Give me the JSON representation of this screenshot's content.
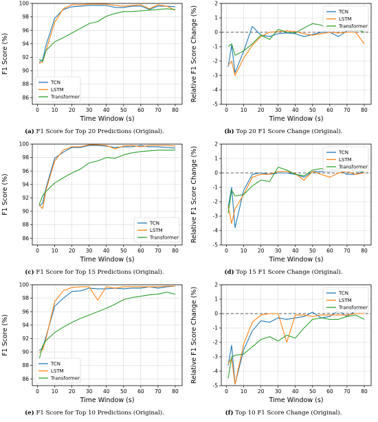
{
  "chart_data": [
    {
      "id": "a",
      "type": "line",
      "caption_prefix": "(a)",
      "caption": "F1 Score for Top 20 Predictions (Original).",
      "xlabel": "Time Window (s)",
      "ylabel": "F1 Score (%)",
      "xlim": [
        -3,
        84
      ],
      "ylim": [
        85,
        100
      ],
      "xticks": [
        0,
        10,
        20,
        30,
        40,
        50,
        60,
        70,
        80
      ],
      "yticks": [
        86,
        88,
        90,
        92,
        94,
        96,
        98,
        100
      ],
      "grid": true,
      "legend_position": "lower-left",
      "zero_line": false,
      "series": [
        {
          "name": "TCN",
          "color": "#1f77b4",
          "x": [
            1,
            3,
            5,
            10,
            15,
            20,
            25,
            30,
            35,
            40,
            45,
            50,
            55,
            60,
            65,
            70,
            75,
            80
          ],
          "y": [
            91.3,
            91.6,
            93.8,
            97.8,
            99.1,
            99.5,
            99.6,
            99.7,
            99.7,
            99.7,
            99.4,
            99.4,
            99.6,
            99.6,
            99.1,
            99.6,
            99.6,
            99.5
          ]
        },
        {
          "name": "LSTM",
          "color": "#ff7f0e",
          "x": [
            1,
            3,
            5,
            10,
            15,
            20,
            25,
            30,
            35,
            40,
            45,
            50,
            55,
            60,
            65,
            70,
            75,
            80
          ],
          "y": [
            91.1,
            91.3,
            93.0,
            97.2,
            99.2,
            99.8,
            99.8,
            99.9,
            99.9,
            99.9,
            99.7,
            99.6,
            99.7,
            99.8,
            99.2,
            99.8,
            99.6,
            99.0
          ]
        },
        {
          "name": "Transformer",
          "color": "#2ca02c",
          "x": [
            1,
            3,
            5,
            10,
            15,
            20,
            25,
            30,
            35,
            40,
            45,
            50,
            55,
            60,
            65,
            70,
            75,
            80
          ],
          "y": [
            91.7,
            91.4,
            93.0,
            94.3,
            94.9,
            95.6,
            96.3,
            97.0,
            97.3,
            98.1,
            98.5,
            98.8,
            98.8,
            98.9,
            99.0,
            99.1,
            99.2,
            99.1
          ]
        }
      ]
    },
    {
      "id": "b",
      "type": "line",
      "caption_prefix": "(b)",
      "caption": "Top 20 F1 Score Change (Original).",
      "xlabel": "Time Window (s)",
      "ylabel": "Relative F1 Score Change (%)",
      "xlim": [
        -3,
        84
      ],
      "ylim": [
        -5,
        2
      ],
      "xticks": [
        0,
        10,
        20,
        30,
        40,
        50,
        60,
        70,
        80
      ],
      "yticks": [
        -5,
        -4,
        -3,
        -2,
        -1,
        0,
        1,
        2
      ],
      "grid": true,
      "legend_position": "upper-right",
      "zero_line": true,
      "series": [
        {
          "name": "TCN",
          "color": "#1f77b4",
          "x": [
            1,
            3,
            5,
            10,
            15,
            20,
            25,
            30,
            35,
            40,
            45,
            50,
            55,
            60,
            65,
            70,
            75,
            80
          ],
          "y": [
            -2.4,
            -0.9,
            -2.8,
            -1.3,
            0.4,
            -0.2,
            -0.3,
            -0.1,
            -0.05,
            -0.1,
            -0.3,
            -0.15,
            0,
            0,
            -0.3,
            0.1,
            0.1,
            0.2
          ]
        },
        {
          "name": "LSTM",
          "color": "#ff7f0e",
          "x": [
            1,
            3,
            5,
            10,
            15,
            20,
            25,
            30,
            35,
            40,
            45,
            50,
            55,
            60,
            65,
            70,
            75,
            80
          ],
          "y": [
            -2.3,
            -2.0,
            -3.0,
            -1.8,
            -0.9,
            -0.3,
            0,
            0.05,
            0.1,
            0.05,
            -0.1,
            -0.2,
            -0.1,
            0,
            -0.05,
            0,
            0,
            -0.8
          ]
        },
        {
          "name": "Transformer",
          "color": "#2ca02c",
          "x": [
            1,
            3,
            5,
            10,
            15,
            20,
            25,
            30,
            35,
            40,
            45,
            50,
            55,
            60,
            65,
            70,
            75,
            80
          ],
          "y": [
            -1.0,
            -0.8,
            -1.6,
            -1.3,
            -0.8,
            -0.2,
            -0.5,
            0.2,
            0,
            -0.05,
            0.3,
            0.6,
            0.5,
            0.2,
            0.3,
            0.4,
            0.2,
            0
          ]
        }
      ]
    },
    {
      "id": "c",
      "type": "line",
      "caption_prefix": "(c)",
      "caption": "F1 Score for Top 15 Predictions (Original).",
      "xlabel": "Time Window (s)",
      "ylabel": "F1 Score (%)",
      "xlim": [
        -3,
        84
      ],
      "ylim": [
        85,
        100
      ],
      "xticks": [
        0,
        10,
        20,
        30,
        40,
        50,
        60,
        70,
        80
      ],
      "yticks": [
        86,
        88,
        90,
        92,
        94,
        96,
        98,
        100
      ],
      "grid": true,
      "legend_position": "lower-right",
      "zero_line": false,
      "series": [
        {
          "name": "TCN",
          "color": "#1f77b4",
          "x": [
            1,
            3,
            5,
            10,
            15,
            20,
            25,
            30,
            35,
            40,
            45,
            50,
            55,
            60,
            65,
            70,
            75,
            80
          ],
          "y": [
            90.8,
            91.2,
            93.5,
            97.9,
            98.8,
            99.5,
            99.5,
            99.8,
            99.8,
            99.7,
            99.5,
            99.6,
            99.6,
            99.8,
            99.6,
            99.6,
            99.5,
            99.4
          ]
        },
        {
          "name": "LSTM",
          "color": "#ff7f0e",
          "x": [
            1,
            3,
            5,
            10,
            15,
            20,
            25,
            30,
            35,
            40,
            45,
            50,
            55,
            60,
            65,
            70,
            75,
            80
          ],
          "y": [
            91.0,
            90.4,
            93.2,
            97.5,
            99.1,
            99.6,
            99.6,
            99.9,
            99.9,
            99.8,
            99.3,
            99.7,
            99.8,
            99.6,
            99.8,
            99.8,
            99.8,
            99.7
          ]
        },
        {
          "name": "Transformer",
          "color": "#2ca02c",
          "x": [
            1,
            3,
            5,
            10,
            15,
            20,
            25,
            30,
            35,
            40,
            45,
            50,
            55,
            60,
            65,
            70,
            75,
            80
          ],
          "y": [
            91.0,
            92.3,
            93.0,
            94.2,
            95.0,
            95.7,
            96.3,
            97.2,
            97.5,
            98.0,
            97.9,
            98.4,
            98.7,
            98.9,
            99.0,
            99.1,
            99.1,
            99.1
          ]
        }
      ]
    },
    {
      "id": "d",
      "type": "line",
      "caption_prefix": "(d)",
      "caption": "Top 15 F1 Score Change (Original).",
      "xlabel": "Time Window (s)",
      "ylabel": "Relative F1 Score Change (%)",
      "xlim": [
        -3,
        84
      ],
      "ylim": [
        -5,
        2
      ],
      "xticks": [
        0,
        10,
        20,
        30,
        40,
        50,
        60,
        70,
        80
      ],
      "yticks": [
        -5,
        -4,
        -3,
        -2,
        -1,
        0,
        1,
        2
      ],
      "grid": true,
      "legend_position": "upper-right",
      "zero_line": true,
      "series": [
        {
          "name": "TCN",
          "color": "#1f77b4",
          "x": [
            1,
            3,
            5,
            10,
            15,
            20,
            25,
            30,
            35,
            40,
            45,
            50,
            55,
            60,
            65,
            70,
            75,
            80
          ],
          "y": [
            -2.4,
            -1.0,
            -3.8,
            -1.2,
            -0.1,
            0,
            -0.1,
            0,
            0,
            -0.1,
            -0.3,
            0.1,
            0.1,
            0.1,
            0.2,
            -0.1,
            -0.1,
            0.1
          ]
        },
        {
          "name": "LSTM",
          "color": "#ff7f0e",
          "x": [
            1,
            3,
            5,
            10,
            15,
            20,
            25,
            30,
            35,
            40,
            45,
            50,
            55,
            60,
            65,
            70,
            75,
            80
          ],
          "y": [
            -2.3,
            -3.5,
            -2.5,
            -1.5,
            -0.3,
            -0.1,
            -0.1,
            0.1,
            0.1,
            -0.05,
            -0.5,
            0.1,
            -0.1,
            -0.3,
            0,
            0.1,
            -0.1,
            0
          ]
        },
        {
          "name": "Transformer",
          "color": "#2ca02c",
          "x": [
            1,
            3,
            5,
            10,
            15,
            20,
            25,
            30,
            35,
            40,
            45,
            50,
            55,
            60,
            65,
            70,
            75,
            80
          ],
          "y": [
            -2.8,
            -1.2,
            -1.6,
            -1.5,
            -0.9,
            -0.5,
            -0.6,
            0.4,
            0.2,
            -0.1,
            -0.2,
            0.2,
            0.3,
            0.2,
            0.3,
            0.4,
            0.1,
            0.1
          ]
        }
      ]
    },
    {
      "id": "e",
      "type": "line",
      "caption_prefix": "(e)",
      "caption": "F1 Score for Top 10 Predictions (Original).",
      "xlabel": "Time Window (s)",
      "ylabel": "F1 Score (%)",
      "xlim": [
        -3,
        84
      ],
      "ylim": [
        85,
        100
      ],
      "xticks": [
        0,
        10,
        20,
        30,
        40,
        50,
        60,
        70,
        80
      ],
      "yticks": [
        86,
        88,
        90,
        92,
        94,
        96,
        98,
        100
      ],
      "grid": true,
      "legend_position": "lower-left",
      "zero_line": false,
      "series": [
        {
          "name": "TCN",
          "color": "#1f77b4",
          "x": [
            1,
            3,
            5,
            10,
            15,
            20,
            25,
            30,
            35,
            40,
            45,
            50,
            55,
            60,
            65,
            70,
            75,
            80
          ],
          "y": [
            90.2,
            90.6,
            92.3,
            96.8,
            98.0,
            99.0,
            99.1,
            99.5,
            99.4,
            99.4,
            99.5,
            99.4,
            99.5,
            99.5,
            99.7,
            99.5,
            99.7,
            99.8
          ]
        },
        {
          "name": "LSTM",
          "color": "#ff7f0e",
          "x": [
            1,
            3,
            5,
            10,
            15,
            20,
            25,
            30,
            35,
            40,
            45,
            50,
            55,
            60,
            65,
            70,
            75,
            80
          ],
          "y": [
            89.9,
            90.3,
            92.0,
            97.5,
            99.1,
            99.6,
            99.7,
            99.7,
            97.7,
            99.7,
            99.5,
            99.7,
            99.7,
            99.7,
            99.7,
            99.7,
            99.8,
            99.8
          ]
        },
        {
          "name": "Transformer",
          "color": "#2ca02c",
          "x": [
            1,
            3,
            5,
            10,
            15,
            20,
            25,
            30,
            35,
            40,
            45,
            50,
            55,
            60,
            65,
            70,
            75,
            80
          ],
          "y": [
            88.9,
            90.9,
            91.7,
            92.9,
            93.7,
            94.4,
            95.0,
            95.5,
            96.0,
            96.5,
            97.1,
            97.8,
            98.1,
            98.3,
            98.5,
            98.6,
            98.9,
            98.6
          ]
        }
      ]
    },
    {
      "id": "f",
      "type": "line",
      "caption_prefix": "(f)",
      "caption": "Top 10 F1 Score Change (Original).",
      "xlabel": "Time Window (s)",
      "ylabel": "Relative F1 Score Change (%)",
      "xlim": [
        -3,
        84
      ],
      "ylim": [
        -5,
        2
      ],
      "xticks": [
        0,
        10,
        20,
        30,
        40,
        50,
        60,
        70,
        80
      ],
      "yticks": [
        -5,
        -4,
        -3,
        -2,
        -1,
        0,
        1,
        2
      ],
      "grid": true,
      "legend_position": "upper-right",
      "zero_line": true,
      "series": [
        {
          "name": "TCN",
          "color": "#1f77b4",
          "x": [
            1,
            3,
            5,
            10,
            15,
            20,
            25,
            30,
            35,
            40,
            45,
            50,
            55,
            60,
            65,
            70,
            75,
            80
          ],
          "y": [
            -3.6,
            -2.2,
            -4.9,
            -2.5,
            -1.2,
            -0.5,
            -0.6,
            -0.3,
            -0.4,
            -0.3,
            -0.2,
            0.1,
            -0.3,
            -0.2,
            0.2,
            -0.2,
            0.2,
            0.4
          ]
        },
        {
          "name": "LSTM",
          "color": "#ff7f0e",
          "x": [
            1,
            3,
            5,
            10,
            15,
            20,
            25,
            30,
            35,
            40,
            45,
            50,
            55,
            60,
            65,
            70,
            75,
            80
          ],
          "y": [
            -3.5,
            -3.1,
            -4.9,
            -2.1,
            -0.6,
            -0.1,
            0,
            0,
            -2.0,
            -0.1,
            -0.1,
            -0.2,
            -0.1,
            -0.1,
            -0.1,
            -0.1,
            0,
            0
          ]
        },
        {
          "name": "Transformer",
          "color": "#2ca02c",
          "x": [
            1,
            3,
            5,
            10,
            15,
            20,
            25,
            30,
            35,
            40,
            45,
            50,
            55,
            60,
            65,
            70,
            75,
            80
          ],
          "y": [
            -4.5,
            -3.0,
            -2.9,
            -2.8,
            -2.3,
            -1.8,
            -1.6,
            -1.9,
            -1.5,
            -1.7,
            -1.0,
            -0.4,
            -0.3,
            -0.4,
            -0.4,
            -0.2,
            -0.1,
            -0.4
          ]
        }
      ]
    }
  ]
}
